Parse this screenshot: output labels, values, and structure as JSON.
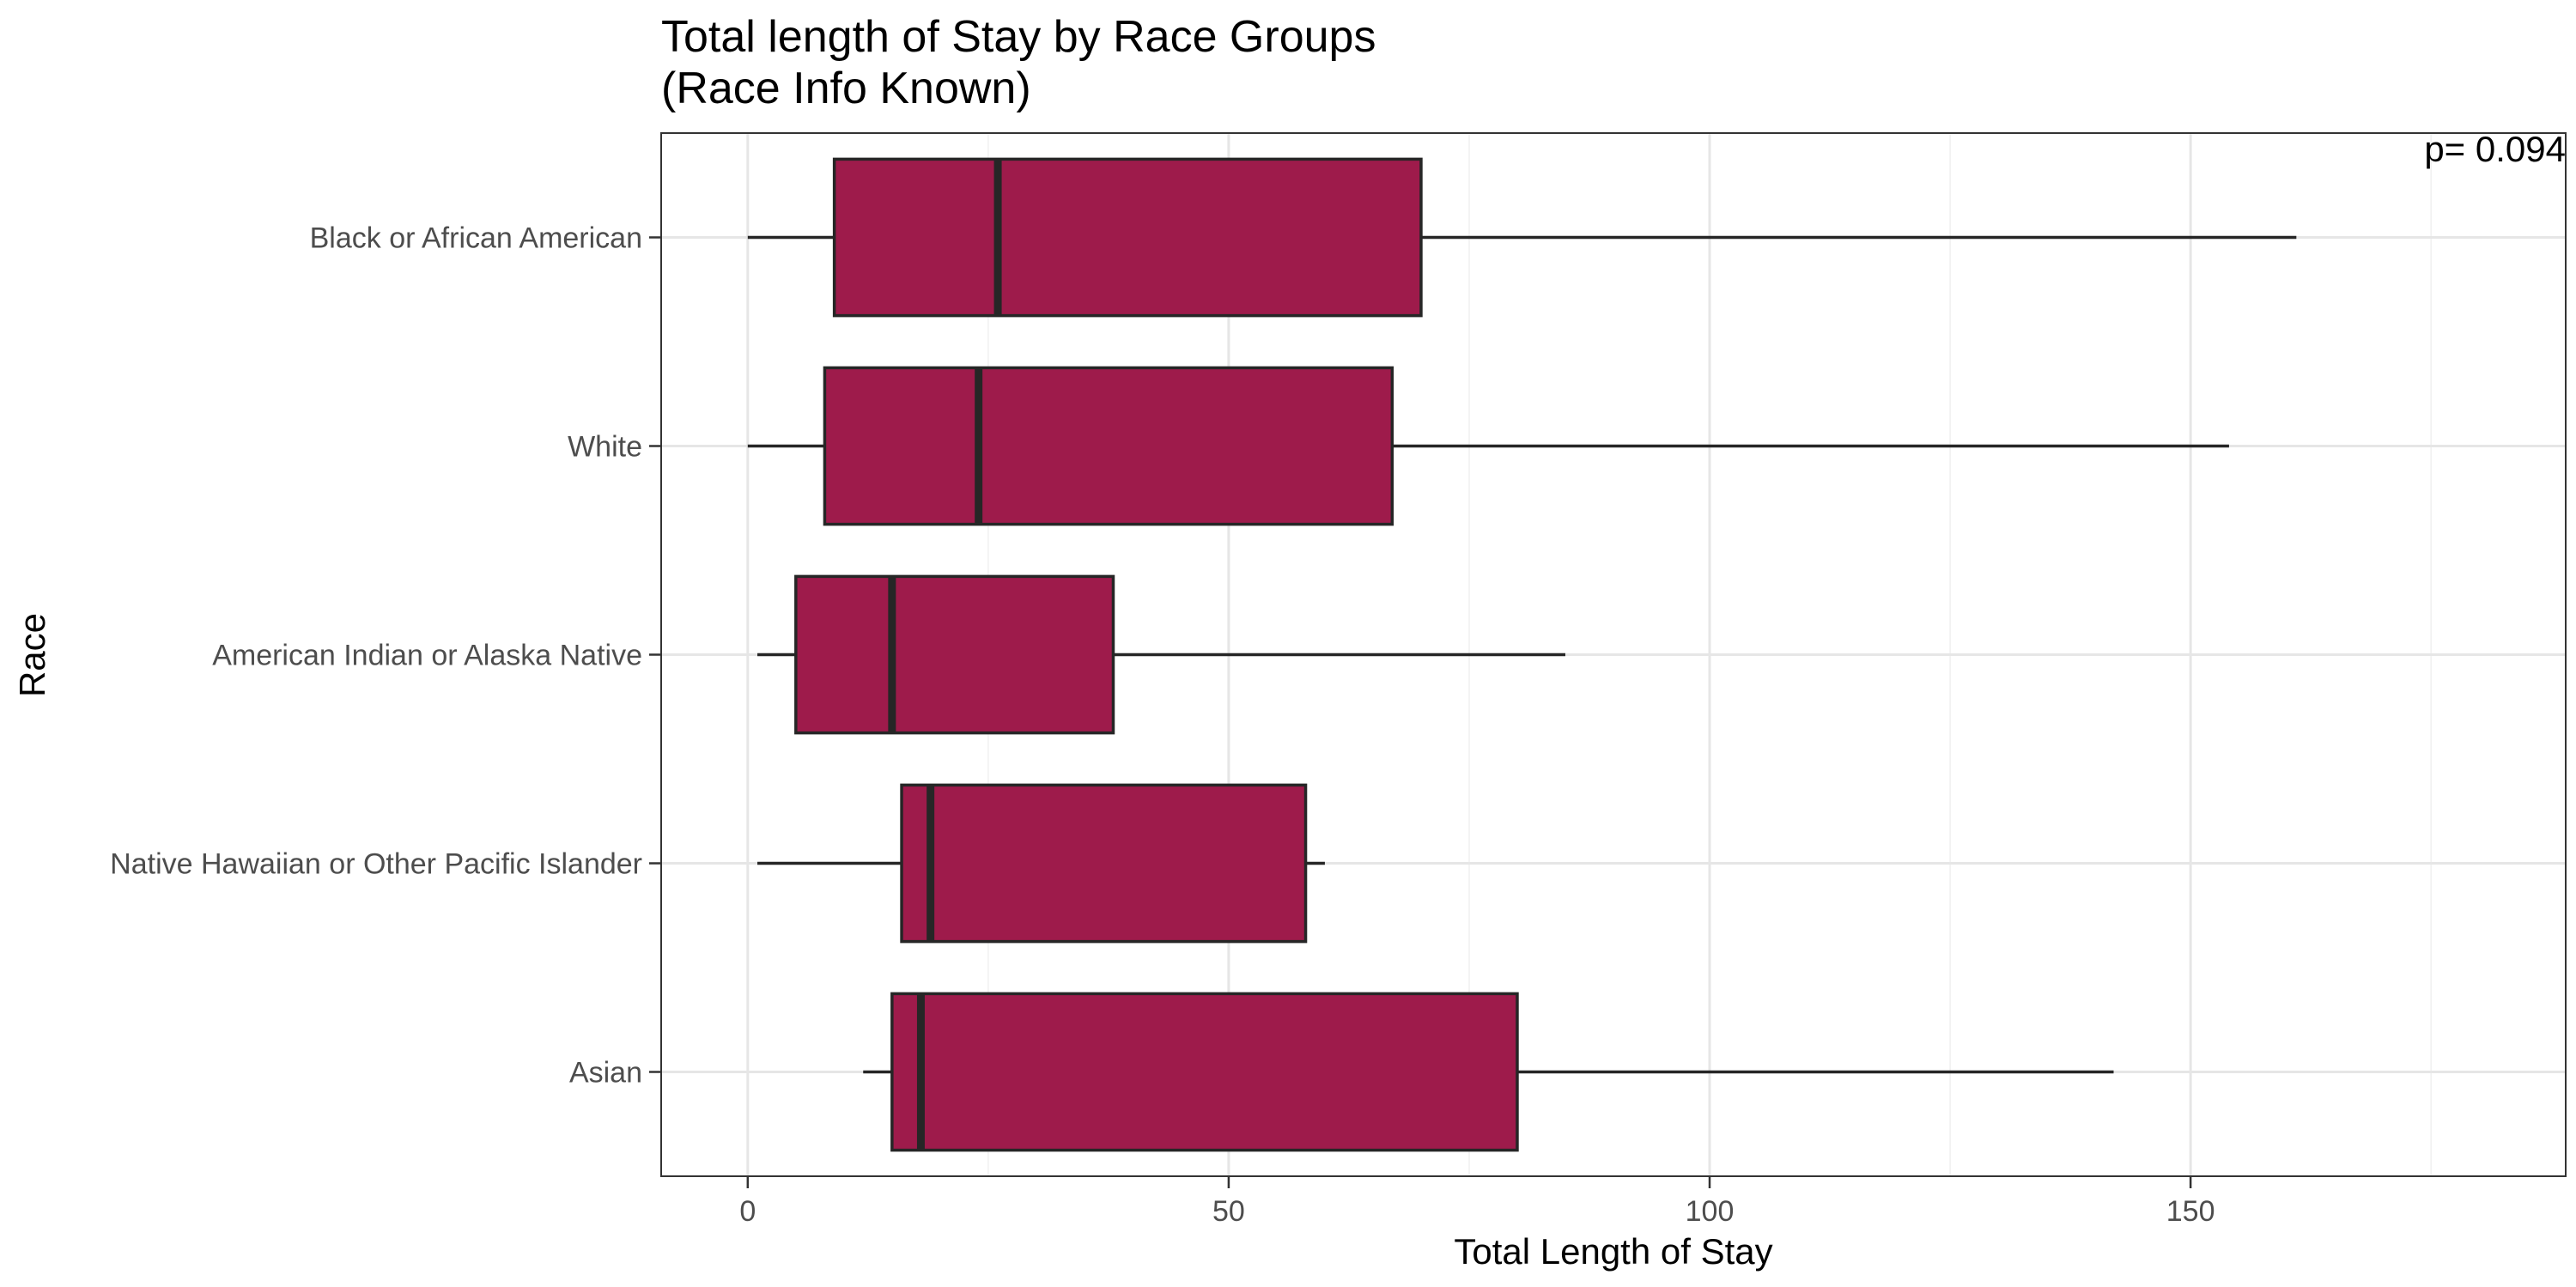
{
  "chart_data": {
    "type": "boxplot",
    "orientation": "horizontal",
    "title": "Total length of Stay by Race Groups",
    "subtitle": "(Race Info Known)",
    "xlabel": "Total Length of Stay",
    "ylabel": "Race",
    "xlim": [
      -9,
      189
    ],
    "xticks": [
      0,
      50,
      100,
      150
    ],
    "xtick_labels": [
      "0",
      "50",
      "100",
      "150"
    ],
    "grid": true,
    "annotation": "p= 0.094",
    "box_color": "#9e1b4b",
    "outline_color": "#262626",
    "categories": [
      "Black or African American",
      "White",
      "American Indian or Alaska Native",
      "Native Hawaiian or Other Pacific Islander",
      "Asian"
    ],
    "boxes": [
      {
        "category": "Black or African American",
        "min": 0,
        "q1": 9,
        "median": 26,
        "q3": 70,
        "max": 161
      },
      {
        "category": "White",
        "min": 0,
        "q1": 8,
        "median": 24,
        "q3": 67,
        "max": 154
      },
      {
        "category": "American Indian or Alaska Native",
        "min": 1,
        "q1": 5,
        "median": 15,
        "q3": 38,
        "max": 85
      },
      {
        "category": "Native Hawaiian or Other Pacific Islander",
        "min": 1,
        "q1": 16,
        "median": 19,
        "q3": 58,
        "max": 60
      },
      {
        "category": "Asian",
        "min": 12,
        "q1": 15,
        "median": 18,
        "q3": 80,
        "max": 142
      }
    ]
  }
}
